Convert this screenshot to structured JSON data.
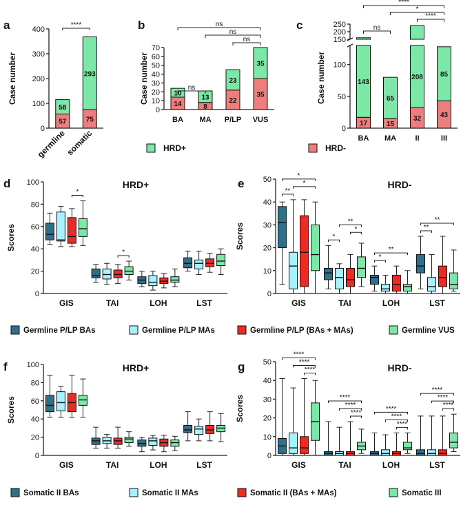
{
  "colors": {
    "hrd_pos": "#7ce8a8",
    "hrd_neg": "#ee7d7d",
    "ba": "#2f6f88",
    "ma": "#a8f2ff",
    "combined": "#ee2b22",
    "vus": "#7ce8a8",
    "axis": "#222222"
  },
  "legend_top": {
    "hrd_pos": "HRD+",
    "hrd_neg": "HRD-"
  },
  "legend_germline": [
    "Germline P/LP BAs",
    "Germline P/LP MAs",
    "Germline P/LP (BAs + MAs)",
    "Germline VUS"
  ],
  "legend_somatic": [
    "Somatic II BAs",
    "Somatic II MAs",
    "Somatic II (BAs + MAs)",
    "Somatic III"
  ],
  "chart_data": [
    {
      "panel": "a",
      "type": "bar",
      "stacked": true,
      "categories": [
        "germline",
        "somatic"
      ],
      "series": [
        {
          "name": "HRD-",
          "values": [
            57,
            75
          ]
        },
        {
          "name": "HRD+",
          "values": [
            58,
            293
          ]
        }
      ],
      "ylabel": "Case number",
      "ylim": [
        0,
        400
      ],
      "yticks": [
        0,
        100,
        200,
        300,
        400
      ],
      "brackets": [
        {
          "from": 0,
          "to": 1,
          "label": "****"
        }
      ]
    },
    {
      "panel": "b",
      "type": "bar",
      "stacked": true,
      "categories": [
        "BA",
        "MA",
        "P/LP",
        "VUS"
      ],
      "series": [
        {
          "name": "HRD-",
          "values": [
            14,
            8,
            22,
            35
          ]
        },
        {
          "name": "HRD+",
          "values": [
            10,
            13,
            23,
            35
          ]
        }
      ],
      "ylabel": "Case number",
      "ylim": [
        0,
        70
      ],
      "brackets": [
        {
          "from": 0,
          "to": 1,
          "label": "ns"
        },
        {
          "from": 2,
          "to": 3,
          "label": "ns"
        },
        {
          "from": 1,
          "to": 3,
          "label": "ns"
        },
        {
          "from": 0,
          "to": 3,
          "label": "ns"
        }
      ]
    },
    {
      "panel": "c",
      "type": "bar",
      "stacked": true,
      "broken_axis": true,
      "categories": [
        "BA",
        "MA",
        "II",
        "III"
      ],
      "series": [
        {
          "name": "HRD-",
          "values": [
            17,
            15,
            32,
            43
          ]
        },
        {
          "name": "HRD+",
          "values": [
            143,
            65,
            208,
            85
          ]
        }
      ],
      "ylabel": "Case number",
      "yticks_lower": [
        "0",
        "50",
        "100"
      ],
      "yticks_upper": [
        "150",
        "200",
        "250"
      ],
      "brackets": [
        {
          "from": 0,
          "to": 1,
          "label": "ns"
        },
        {
          "from": 2,
          "to": 3,
          "label": "****"
        },
        {
          "from": 1,
          "to": 3,
          "label": "*"
        },
        {
          "from": 0,
          "to": 3,
          "label": "****"
        }
      ]
    },
    {
      "panel": "d",
      "type": "box",
      "title": "HRD+",
      "ylabel": "Scores",
      "ylim": [
        0,
        100
      ],
      "yticks": [
        0,
        20,
        40,
        60,
        80,
        100
      ],
      "groups": [
        "GIS",
        "TAI",
        "LOH",
        "LST"
      ],
      "boxes": [
        [
          [
            44,
            48,
            53,
            63,
            72
          ],
          [
            42,
            47,
            48,
            73,
            78
          ],
          [
            42,
            45,
            51,
            68,
            76
          ],
          [
            43,
            51,
            58,
            67,
            83
          ]
        ],
        [
          [
            10,
            14,
            16,
            22,
            26
          ],
          [
            8,
            13,
            17,
            22,
            27
          ],
          [
            9,
            14,
            17,
            21,
            26
          ],
          [
            12,
            17,
            20,
            24,
            29
          ]
        ],
        [
          [
            6,
            9,
            12,
            15,
            20
          ],
          [
            3,
            7,
            10,
            16,
            20
          ],
          [
            5,
            9,
            11,
            14,
            18
          ],
          [
            6,
            10,
            12,
            15,
            22
          ]
        ],
        [
          [
            20,
            23,
            27,
            32,
            38
          ],
          [
            17,
            22,
            27,
            30,
            38
          ],
          [
            19,
            24,
            27,
            31,
            36
          ],
          [
            17,
            25,
            29,
            35,
            40
          ]
        ]
      ],
      "brackets": [
        {
          "group": 0,
          "from": 2,
          "to": 3,
          "label": "*"
        },
        {
          "group": 1,
          "from": 2,
          "to": 3,
          "label": "*"
        }
      ]
    },
    {
      "panel": "e",
      "type": "box",
      "title": "HRD-",
      "ylabel": "Scores",
      "ylim": [
        0,
        50
      ],
      "yticks": [
        0,
        10,
        20,
        30,
        40,
        50
      ],
      "groups": [
        "GIS",
        "TAI",
        "LOH",
        "LST"
      ],
      "boxes": [
        [
          [
            4,
            20,
            31,
            38,
            40
          ],
          [
            0,
            2,
            12,
            18,
            41
          ],
          [
            0,
            3,
            18,
            34,
            41
          ],
          [
            0,
            10,
            17,
            30,
            40
          ]
        ],
        [
          [
            2,
            6,
            9,
            11,
            21
          ],
          [
            0,
            2,
            7,
            11,
            13
          ],
          [
            0,
            3,
            6,
            11,
            17
          ],
          [
            3,
            7,
            11,
            16,
            22
          ]
        ],
        [
          [
            1,
            4,
            7,
            8,
            12
          ],
          [
            0,
            1,
            2,
            4,
            8
          ],
          [
            0,
            1,
            4,
            8,
            12
          ],
          [
            0,
            1,
            3,
            4,
            10
          ]
        ],
        [
          [
            2,
            9,
            12,
            17,
            25
          ],
          [
            0,
            1,
            3,
            7,
            17
          ],
          [
            0,
            3,
            7,
            12,
            25
          ],
          [
            1,
            2,
            4,
            9,
            19
          ]
        ]
      ],
      "brackets": [
        {
          "group": 0,
          "from": 0,
          "to": 1,
          "label": "**"
        },
        {
          "group": 0,
          "from": 1,
          "to": 3,
          "label": "*"
        },
        {
          "group": 0,
          "from": 0,
          "to": 3,
          "label": "*"
        },
        {
          "group": 1,
          "from": 0,
          "to": 1,
          "label": "*"
        },
        {
          "group": 1,
          "from": 2,
          "to": 3,
          "label": "*"
        },
        {
          "group": 1,
          "from": 1,
          "to": 3,
          "label": "**"
        },
        {
          "group": 2,
          "from": 0,
          "to": 1,
          "label": "*"
        },
        {
          "group": 2,
          "from": 0,
          "to": 3,
          "label": "**"
        },
        {
          "group": 3,
          "from": 0,
          "to": 1,
          "label": "**"
        },
        {
          "group": 3,
          "from": 0,
          "to": 3,
          "label": "**"
        }
      ]
    },
    {
      "panel": "f",
      "type": "box",
      "title": "HRD+",
      "ylabel": "Scores",
      "ylim": [
        0,
        100
      ],
      "yticks": [
        0,
        20,
        40,
        60,
        80,
        100
      ],
      "groups": [
        "GIS",
        "TAI",
        "LOH",
        "LST"
      ],
      "boxes": [
        [
          [
            42,
            48,
            55,
            66,
            88
          ],
          [
            42,
            49,
            58,
            70,
            76
          ],
          [
            42,
            48,
            58,
            68,
            88
          ],
          [
            42,
            55,
            61,
            66,
            84
          ]
        ],
        [
          [
            8,
            12,
            16,
            19,
            31
          ],
          [
            8,
            13,
            16,
            20,
            23
          ],
          [
            8,
            12,
            16,
            19,
            31
          ],
          [
            10,
            14,
            18,
            20,
            26
          ]
        ],
        [
          [
            4,
            10,
            13,
            17,
            20
          ],
          [
            6,
            11,
            16,
            19,
            22
          ],
          [
            4,
            10,
            14,
            18,
            22
          ],
          [
            5,
            10,
            14,
            17,
            21
          ]
        ],
        [
          [
            16,
            25,
            28,
            33,
            48
          ],
          [
            16,
            23,
            29,
            32,
            40
          ],
          [
            16,
            24,
            28,
            33,
            48
          ],
          [
            15,
            26,
            30,
            33,
            46
          ]
        ]
      ],
      "brackets": []
    },
    {
      "panel": "g",
      "type": "box",
      "title": "HRD-",
      "ylabel": "Scores",
      "ylim": [
        0,
        50
      ],
      "yticks": [
        0,
        10,
        20,
        30,
        40,
        50
      ],
      "groups": [
        "GIS",
        "TAI",
        "LOH",
        "LST"
      ],
      "boxes": [
        [
          [
            0,
            1,
            5,
            9,
            41
          ],
          [
            0,
            1,
            4,
            12,
            36
          ],
          [
            0,
            1,
            4,
            10,
            41
          ],
          [
            0,
            8,
            18,
            28,
            40
          ]
        ],
        [
          [
            0,
            0,
            1,
            2,
            18
          ],
          [
            0,
            0,
            1,
            2,
            15
          ],
          [
            0,
            0,
            1,
            2,
            18
          ],
          [
            1,
            3,
            5,
            7,
            14
          ]
        ],
        [
          [
            0,
            0,
            1,
            2,
            12
          ],
          [
            0,
            0,
            1,
            3,
            11
          ],
          [
            0,
            0,
            1,
            2,
            12
          ],
          [
            1,
            3,
            4,
            7,
            12
          ]
        ],
        [
          [
            0,
            0,
            1,
            3,
            21
          ],
          [
            0,
            0,
            1,
            3,
            21
          ],
          [
            0,
            0,
            1,
            3,
            21
          ],
          [
            2,
            4,
            7,
            12,
            22
          ]
        ]
      ],
      "brackets": [
        {
          "group": 0,
          "from": 2,
          "to": 3,
          "label": "****"
        },
        {
          "group": 0,
          "from": 1,
          "to": 3,
          "label": "****"
        },
        {
          "group": 0,
          "from": 0,
          "to": 3,
          "label": "****"
        },
        {
          "group": 1,
          "from": 2,
          "to": 3,
          "label": "****"
        },
        {
          "group": 1,
          "from": 1,
          "to": 3,
          "label": "****"
        },
        {
          "group": 1,
          "from": 0,
          "to": 3,
          "label": "****"
        },
        {
          "group": 2,
          "from": 2,
          "to": 3,
          "label": "****"
        },
        {
          "group": 2,
          "from": 1,
          "to": 3,
          "label": "****"
        },
        {
          "group": 2,
          "from": 0,
          "to": 3,
          "label": "****"
        },
        {
          "group": 3,
          "from": 2,
          "to": 3,
          "label": "****"
        },
        {
          "group": 3,
          "from": 1,
          "to": 3,
          "label": "****"
        },
        {
          "group": 3,
          "from": 0,
          "to": 3,
          "label": "****"
        }
      ]
    }
  ]
}
